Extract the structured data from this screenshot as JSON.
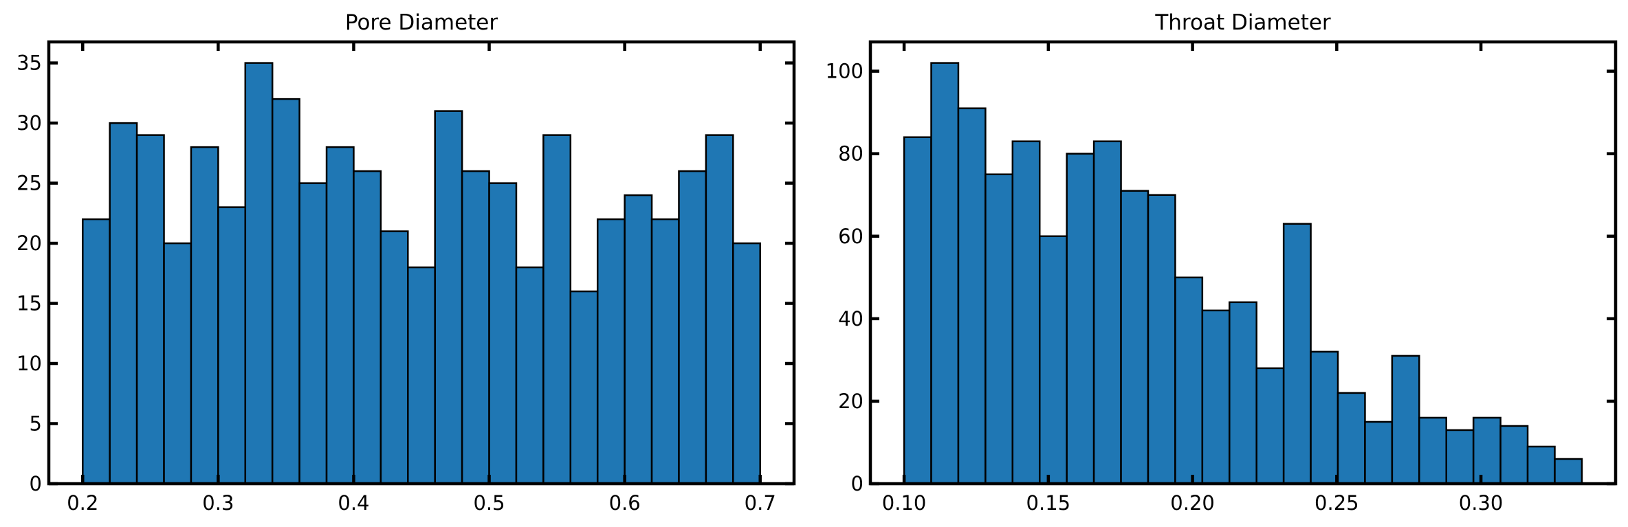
{
  "chart_data": [
    {
      "type": "bar",
      "title": "Pore Diameter",
      "xlabel": "",
      "ylabel": "",
      "bin_edges": [
        0.2,
        0.22,
        0.24,
        0.26,
        0.28,
        0.3,
        0.32,
        0.34,
        0.36,
        0.38,
        0.4,
        0.42,
        0.44,
        0.46,
        0.48,
        0.5,
        0.52,
        0.54,
        0.56,
        0.58,
        0.6,
        0.62,
        0.64,
        0.66,
        0.68,
        0.7
      ],
      "values": [
        22,
        30,
        29,
        20,
        28,
        23,
        35,
        32,
        25,
        28,
        26,
        21,
        18,
        31,
        26,
        25,
        18,
        29,
        16,
        22,
        24,
        22,
        26,
        29,
        20
      ],
      "xlim": [
        0.175,
        0.725
      ],
      "ylim": [
        0,
        36.75
      ],
      "xticks": [
        0.2,
        0.3,
        0.4,
        0.5,
        0.6,
        0.7
      ],
      "xtick_labels": [
        "0.2",
        "0.3",
        "0.4",
        "0.5",
        "0.6",
        "0.7"
      ],
      "yticks": [
        0,
        5,
        10,
        15,
        20,
        25,
        30,
        35
      ],
      "ytick_labels": [
        "0",
        "5",
        "10",
        "15",
        "20",
        "25",
        "30",
        "35"
      ],
      "bar_color": "#1f77b4",
      "edge_color": "#000000",
      "grid": false
    },
    {
      "type": "bar",
      "title": "Throat Diameter",
      "xlabel": "",
      "ylabel": "",
      "bin_edges": [
        0.1,
        0.1094,
        0.1188,
        0.1282,
        0.1376,
        0.147,
        0.1564,
        0.1658,
        0.1752,
        0.1846,
        0.194,
        0.2034,
        0.2128,
        0.2222,
        0.2316,
        0.241,
        0.2504,
        0.2598,
        0.2692,
        0.2786,
        0.288,
        0.2974,
        0.3068,
        0.3162,
        0.3256,
        0.335
      ],
      "values": [
        84,
        102,
        91,
        75,
        83,
        60,
        80,
        83,
        71,
        70,
        50,
        42,
        44,
        28,
        63,
        32,
        22,
        15,
        31,
        16,
        13,
        16,
        14,
        9,
        6
      ],
      "xlim": [
        0.0883,
        0.3467
      ],
      "ylim": [
        0,
        107.1
      ],
      "xticks": [
        0.1,
        0.15,
        0.2,
        0.25,
        0.3
      ],
      "xtick_labels": [
        "0.10",
        "0.15",
        "0.20",
        "0.25",
        "0.30"
      ],
      "yticks": [
        0,
        20,
        40,
        60,
        80,
        100
      ],
      "ytick_labels": [
        "0",
        "20",
        "40",
        "60",
        "80",
        "100"
      ],
      "bar_color": "#1f77b4",
      "edge_color": "#000000",
      "grid": false
    }
  ]
}
